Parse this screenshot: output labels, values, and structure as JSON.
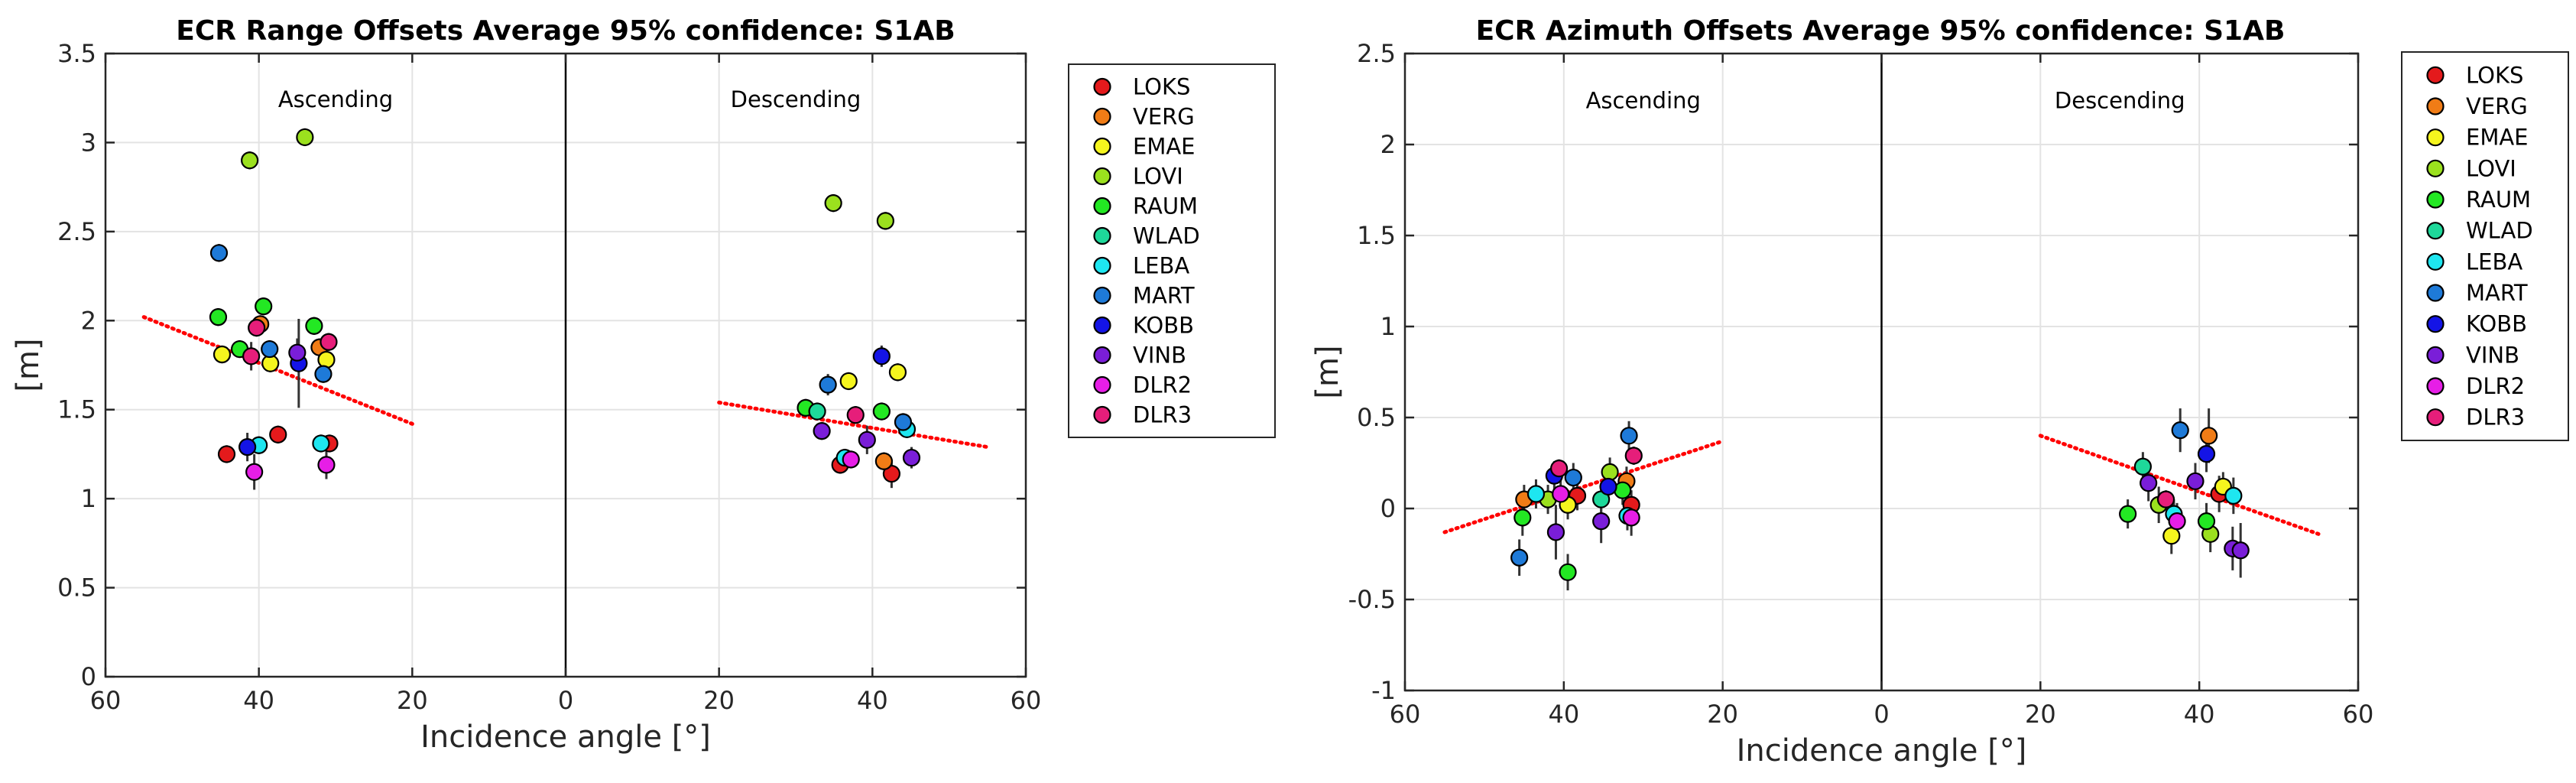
{
  "stations": [
    {
      "name": "LOKS",
      "color": "#e41a1c"
    },
    {
      "name": "VERG",
      "color": "#f07c16"
    },
    {
      "name": "EMAE",
      "color": "#f5f51e"
    },
    {
      "name": "LOVI",
      "color": "#9be01e"
    },
    {
      "name": "RAUM",
      "color": "#23e823"
    },
    {
      "name": "WLAD",
      "color": "#1ed89a"
    },
    {
      "name": "LEBA",
      "color": "#1ee6f0"
    },
    {
      "name": "MART",
      "color": "#1e7ad8"
    },
    {
      "name": "KOBB",
      "color": "#1414e6"
    },
    {
      "name": "VINB",
      "color": "#7a1ed8"
    },
    {
      "name": "DLR2",
      "color": "#e61ee6"
    },
    {
      "name": "DLR3",
      "color": "#e61e7a"
    }
  ],
  "chart_data": [
    {
      "type": "scatter",
      "title": "ECR Range Offsets Average 95% confidence: S1AB",
      "xlabel": "Incidence angle [°]",
      "ylabel": "[m]",
      "xlim": [
        -60,
        60
      ],
      "ylim": [
        0,
        3.5
      ],
      "xticks": [
        -60,
        -40,
        -20,
        0,
        20,
        40,
        60
      ],
      "xticklabels": [
        "60",
        "40",
        "20",
        "0",
        "20",
        "40",
        "60"
      ],
      "yticks": [
        0,
        0.5,
        1,
        1.5,
        2,
        2.5,
        3,
        3.5
      ],
      "yticklabels": [
        "0",
        "0.5",
        "1",
        "1.5",
        "2",
        "2.5",
        "3",
        "3.5"
      ],
      "grid": true,
      "legend": "outside-right",
      "annotations": [
        {
          "text": "Ascending",
          "x": -30,
          "y": 3.2
        },
        {
          "text": "Descending",
          "x": 30,
          "y": 3.2
        }
      ],
      "trend": [
        {
          "x": [
            -55,
            -20
          ],
          "y": [
            2.02,
            1.42
          ]
        },
        {
          "x": [
            20,
            55
          ],
          "y": [
            1.54,
            1.29
          ]
        }
      ],
      "points": [
        {
          "x": -44.2,
          "y": 1.25,
          "s": 0,
          "err": 0.05
        },
        {
          "x": -37.5,
          "y": 1.36,
          "s": 0,
          "err": 0.05
        },
        {
          "x": -30.8,
          "y": 1.31,
          "s": 0,
          "err": 0.05
        },
        {
          "x": 35.8,
          "y": 1.19,
          "s": 0,
          "err": 0.05
        },
        {
          "x": 42.5,
          "y": 1.14,
          "s": 0,
          "err": 0.08
        },
        {
          "x": -32.1,
          "y": 1.85,
          "s": 1,
          "err": 0.05
        },
        {
          "x": -39.8,
          "y": 1.98,
          "s": 1,
          "err": 0.05
        },
        {
          "x": 41.5,
          "y": 1.21,
          "s": 1,
          "err": 0.05
        },
        {
          "x": -44.8,
          "y": 1.81,
          "s": 2,
          "err": 0.05
        },
        {
          "x": -38.5,
          "y": 1.76,
          "s": 2,
          "err": 0.05
        },
        {
          "x": -31.2,
          "y": 1.78,
          "s": 2,
          "err": 0.05
        },
        {
          "x": 36.9,
          "y": 1.66,
          "s": 2,
          "err": 0.05
        },
        {
          "x": 43.3,
          "y": 1.71,
          "s": 2,
          "err": 0.05
        },
        {
          "x": -41.2,
          "y": 2.9,
          "s": 3,
          "err": 0.05
        },
        {
          "x": -34.0,
          "y": 3.03,
          "s": 3,
          "err": 0.05
        },
        {
          "x": 34.9,
          "y": 2.66,
          "s": 3,
          "err": 0.05
        },
        {
          "x": 41.7,
          "y": 2.56,
          "s": 3,
          "err": 0.05
        },
        {
          "x": -45.3,
          "y": 2.02,
          "s": 4,
          "err": 0.05
        },
        {
          "x": -39.4,
          "y": 2.08,
          "s": 4,
          "err": 0.05
        },
        {
          "x": -32.8,
          "y": 1.97,
          "s": 4,
          "err": 0.05
        },
        {
          "x": -42.5,
          "y": 1.84,
          "s": 4,
          "err": 0.05
        },
        {
          "x": 31.3,
          "y": 1.51,
          "s": 4,
          "err": 0.05
        },
        {
          "x": 41.2,
          "y": 1.49,
          "s": 4,
          "err": 0.05
        },
        {
          "x": 32.8,
          "y": 1.49,
          "s": 5,
          "err": 0.05
        },
        {
          "x": -40.0,
          "y": 1.3,
          "s": 6,
          "err": 0.05
        },
        {
          "x": -31.9,
          "y": 1.31,
          "s": 6,
          "err": 0.05
        },
        {
          "x": 36.4,
          "y": 1.23,
          "s": 6,
          "err": 0.05
        },
        {
          "x": 44.5,
          "y": 1.39,
          "s": 6,
          "err": 0.05
        },
        {
          "x": -45.2,
          "y": 2.38,
          "s": 7,
          "err": 0.05
        },
        {
          "x": -38.6,
          "y": 1.84,
          "s": 7,
          "err": 0.05
        },
        {
          "x": -31.6,
          "y": 1.7,
          "s": 7,
          "err": 0.05
        },
        {
          "x": 34.2,
          "y": 1.64,
          "s": 7,
          "err": 0.06
        },
        {
          "x": 44.0,
          "y": 1.43,
          "s": 7,
          "err": 0.05
        },
        {
          "x": -41.5,
          "y": 1.29,
          "s": 8,
          "err": 0.08
        },
        {
          "x": -34.8,
          "y": 1.76,
          "s": 8,
          "err": 0.25
        },
        {
          "x": 41.2,
          "y": 1.8,
          "s": 8,
          "err": 0.06
        },
        {
          "x": -35.0,
          "y": 1.82,
          "s": 9,
          "err": 0.08
        },
        {
          "x": 33.4,
          "y": 1.38,
          "s": 9,
          "err": 0.05
        },
        {
          "x": 39.3,
          "y": 1.33,
          "s": 9,
          "err": 0.08
        },
        {
          "x": 45.1,
          "y": 1.23,
          "s": 9,
          "err": 0.06
        },
        {
          "x": -40.6,
          "y": 1.15,
          "s": 10,
          "err": 0.1
        },
        {
          "x": -31.2,
          "y": 1.19,
          "s": 10,
          "err": 0.08
        },
        {
          "x": 37.2,
          "y": 1.22,
          "s": 10,
          "err": 0.05
        },
        {
          "x": -40.3,
          "y": 1.96,
          "s": 11,
          "err": 0.05
        },
        {
          "x": -41.0,
          "y": 1.8,
          "s": 11,
          "err": 0.08
        },
        {
          "x": -30.9,
          "y": 1.88,
          "s": 11,
          "err": 0.05
        },
        {
          "x": 37.8,
          "y": 1.47,
          "s": 11,
          "err": 0.05
        }
      ]
    },
    {
      "type": "scatter",
      "title": "ECR Azimuth Offsets Average 95% confidence: S1AB",
      "xlabel": "Incidence angle [°]",
      "ylabel": "[m]",
      "xlim": [
        -60,
        60
      ],
      "ylim": [
        -1,
        2.5
      ],
      "xticks": [
        -60,
        -40,
        -20,
        0,
        20,
        40,
        60
      ],
      "xticklabels": [
        "60",
        "40",
        "20",
        "0",
        "20",
        "40",
        "60"
      ],
      "yticks": [
        -1,
        -0.5,
        0,
        0.5,
        1,
        1.5,
        2,
        2.5
      ],
      "yticklabels": [
        "-1",
        "-0.5",
        "0",
        "0.5",
        "1",
        "1.5",
        "2",
        "2.5"
      ],
      "grid": true,
      "legend": "outside-right",
      "annotations": [
        {
          "text": "Ascending",
          "x": -30,
          "y": 2.2
        },
        {
          "text": "Descending",
          "x": 30,
          "y": 2.2
        }
      ],
      "trend": [
        {
          "x": [
            -55,
            -20
          ],
          "y": [
            -0.13,
            0.37
          ]
        },
        {
          "x": [
            20,
            55
          ],
          "y": [
            0.4,
            -0.14
          ]
        }
      ],
      "points": [
        {
          "x": -38.3,
          "y": 0.07,
          "s": 0,
          "err": 0.08
        },
        {
          "x": -31.5,
          "y": 0.02,
          "s": 0,
          "err": 0.08
        },
        {
          "x": 42.5,
          "y": 0.08,
          "s": 0,
          "err": 0.1
        },
        {
          "x": -45.0,
          "y": 0.05,
          "s": 1,
          "err": 0.08
        },
        {
          "x": -32.1,
          "y": 0.15,
          "s": 1,
          "err": 0.08
        },
        {
          "x": 41.2,
          "y": 0.4,
          "s": 1,
          "err": 0.15
        },
        {
          "x": -39.5,
          "y": 0.02,
          "s": 2,
          "err": 0.08
        },
        {
          "x": 36.5,
          "y": -0.15,
          "s": 2,
          "err": 0.1
        },
        {
          "x": 43.0,
          "y": 0.12,
          "s": 2,
          "err": 0.08
        },
        {
          "x": -34.2,
          "y": 0.2,
          "s": 3,
          "err": 0.08
        },
        {
          "x": -42.0,
          "y": 0.05,
          "s": 3,
          "err": 0.08
        },
        {
          "x": 34.9,
          "y": 0.02,
          "s": 3,
          "err": 0.1
        },
        {
          "x": 41.4,
          "y": -0.14,
          "s": 3,
          "err": 0.1
        },
        {
          "x": -45.2,
          "y": -0.05,
          "s": 4,
          "err": 0.1
        },
        {
          "x": -39.5,
          "y": -0.35,
          "s": 4,
          "err": 0.1
        },
        {
          "x": -32.6,
          "y": 0.1,
          "s": 4,
          "err": 0.08
        },
        {
          "x": 31.0,
          "y": -0.03,
          "s": 4,
          "err": 0.08
        },
        {
          "x": 40.9,
          "y": -0.07,
          "s": 4,
          "err": 0.1
        },
        {
          "x": -35.3,
          "y": 0.05,
          "s": 5,
          "err": 0.08
        },
        {
          "x": 32.9,
          "y": 0.23,
          "s": 5,
          "err": 0.08
        },
        {
          "x": -43.5,
          "y": 0.08,
          "s": 6,
          "err": 0.08
        },
        {
          "x": -32.0,
          "y": -0.04,
          "s": 6,
          "err": 0.08
        },
        {
          "x": 36.8,
          "y": -0.03,
          "s": 6,
          "err": 0.08
        },
        {
          "x": 44.3,
          "y": 0.07,
          "s": 6,
          "err": 0.1
        },
        {
          "x": -45.6,
          "y": -0.27,
          "s": 7,
          "err": 0.1
        },
        {
          "x": -38.8,
          "y": 0.17,
          "s": 7,
          "err": 0.08
        },
        {
          "x": -31.8,
          "y": 0.4,
          "s": 7,
          "err": 0.08
        },
        {
          "x": 37.6,
          "y": 0.43,
          "s": 7,
          "err": 0.12
        },
        {
          "x": -41.2,
          "y": 0.18,
          "s": 8,
          "err": 0.08
        },
        {
          "x": -34.4,
          "y": 0.12,
          "s": 8,
          "err": 0.08
        },
        {
          "x": 40.9,
          "y": 0.3,
          "s": 8,
          "err": 0.1
        },
        {
          "x": -41.0,
          "y": -0.13,
          "s": 9,
          "err": 0.15
        },
        {
          "x": -35.3,
          "y": -0.07,
          "s": 9,
          "err": 0.12
        },
        {
          "x": 33.6,
          "y": 0.14,
          "s": 9,
          "err": 0.1
        },
        {
          "x": 39.5,
          "y": 0.15,
          "s": 9,
          "err": 0.1
        },
        {
          "x": 44.2,
          "y": -0.22,
          "s": 9,
          "err": 0.12
        },
        {
          "x": 45.2,
          "y": -0.23,
          "s": 9,
          "err": 0.15
        },
        {
          "x": -40.4,
          "y": 0.08,
          "s": 10,
          "err": 0.08
        },
        {
          "x": -31.5,
          "y": -0.05,
          "s": 10,
          "err": 0.1
        },
        {
          "x": 37.2,
          "y": -0.07,
          "s": 10,
          "err": 0.1
        },
        {
          "x": -40.6,
          "y": 0.22,
          "s": 11,
          "err": 0.05
        },
        {
          "x": -31.2,
          "y": 0.29,
          "s": 11,
          "err": 0.05
        },
        {
          "x": 35.8,
          "y": 0.05,
          "s": 11,
          "err": 0.05
        }
      ]
    }
  ]
}
